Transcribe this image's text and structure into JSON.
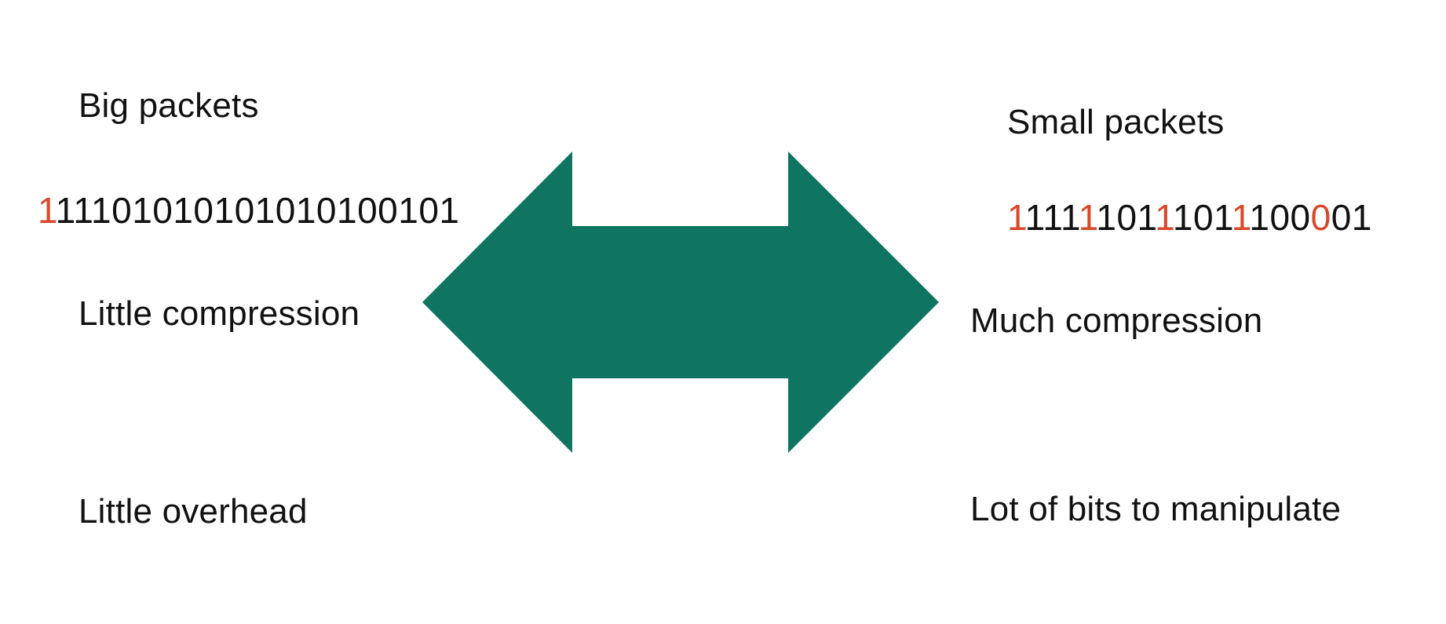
{
  "left": {
    "title": "Big packets",
    "bits": [
      {
        "text": "1",
        "highlight": true
      },
      {
        "text": "1110101010101010010​1",
        "highlight": false
      }
    ],
    "compression": "Little compression",
    "overhead": "Little overhead"
  },
  "right": {
    "title": "Small packets",
    "bits": [
      {
        "text": "1",
        "highlight": true
      },
      {
        "text": "111",
        "highlight": false
      },
      {
        "text": "1",
        "highlight": true
      },
      {
        "text": "101",
        "highlight": false
      },
      {
        "text": "1",
        "highlight": true
      },
      {
        "text": "101",
        "highlight": false
      },
      {
        "text": "1",
        "highlight": true
      },
      {
        "text": "100",
        "highlight": false
      },
      {
        "text": "0",
        "highlight": true
      },
      {
        "text": "01",
        "highlight": false
      }
    ],
    "compression": "Much compression",
    "manipulation": "Lot of bits to manipulate"
  },
  "colors": {
    "arrow": "#0f7561",
    "highlight_bit": "#d9472b",
    "text": "#111111"
  },
  "icons": {
    "arrow": "double-headed-arrow-icon"
  }
}
